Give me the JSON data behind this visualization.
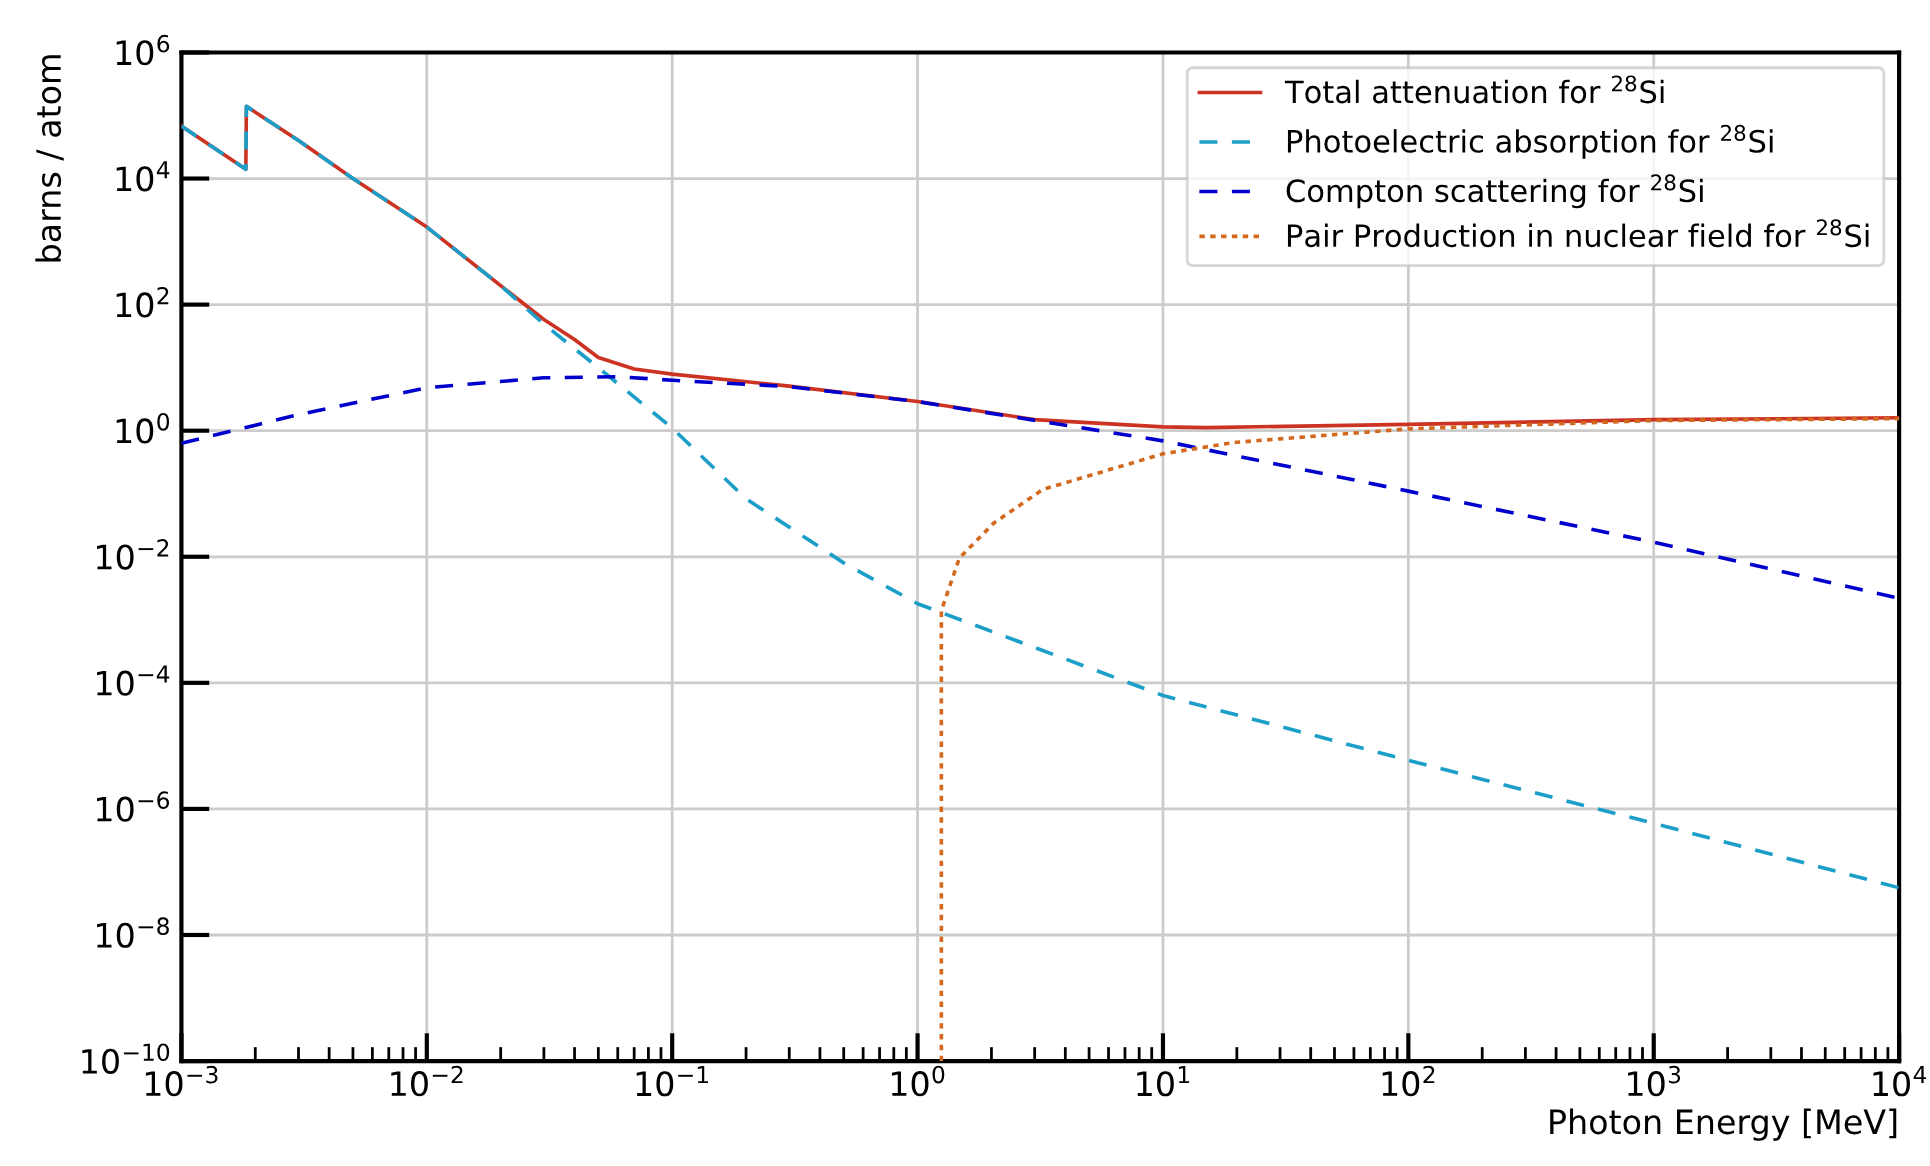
{
  "chart_data": {
    "type": "line",
    "xlabel": "Photon Energy [MeV]",
    "ylabel": "barns / atom",
    "log": "xy",
    "grid": true,
    "legend": "top right",
    "xlim": [
      0.001,
      10000
    ],
    "ylim": [
      1e-10,
      1000000
    ],
    "xticks": [
      {
        "value": 0.001,
        "label": "10$^{−3}$"
      },
      {
        "value": 0.01,
        "label": "10$^{−2}$"
      },
      {
        "value": 0.1,
        "label": "10$^{−1}$"
      },
      {
        "value": 1,
        "label": "10$^{0}$"
      },
      {
        "value": 10,
        "label": "10$^{1}$"
      },
      {
        "value": 100,
        "label": "10$^{2}$"
      },
      {
        "value": 1000,
        "label": "10$^{3}$"
      },
      {
        "value": 10000,
        "label": "10$^{4}$"
      }
    ],
    "yticks": [
      {
        "value": 1e-10,
        "label": "10$^{−10}$"
      },
      {
        "value": 1e-08,
        "label": "10$^{−8}$"
      },
      {
        "value": 1e-06,
        "label": "10$^{−6}$"
      },
      {
        "value": 0.0001,
        "label": "10$^{−4}$"
      },
      {
        "value": 0.01,
        "label": "10$^{−2}$"
      },
      {
        "value": 1,
        "label": "10$^{0}$"
      },
      {
        "value": 100,
        "label": "10$^{2}$"
      },
      {
        "value": 10000,
        "label": "10$^{4}$"
      },
      {
        "value": 1000000,
        "label": "10$^{6}$"
      }
    ],
    "series": [
      {
        "name": "Total attenuation for $^{28}$Si",
        "color": "#cc3322",
        "line_style": "solid",
        "x": [
          0.001,
          0.00183,
          0.00184,
          0.003,
          0.005,
          0.01,
          0.02,
          0.03,
          0.04,
          0.05,
          0.07,
          0.1,
          0.3,
          1,
          3,
          10,
          15,
          100,
          1000,
          10000
        ],
        "values": [
          68000,
          14000,
          140000,
          40000,
          10000,
          1700,
          200,
          58,
          28,
          14.5,
          9.5,
          7.9,
          5.1,
          2.9,
          1.5,
          1.15,
          1.12,
          1.26,
          1.5,
          1.6
        ]
      },
      {
        "name": "Photoelectric absorption for $^{28}$Si",
        "color": "#1b9fc8",
        "line_style": "dashed",
        "x": [
          0.001,
          0.00183,
          0.00184,
          0.003,
          0.005,
          0.01,
          0.02,
          0.03,
          0.05,
          0.1,
          0.2,
          0.5,
          1,
          10,
          100,
          1000,
          10000
        ],
        "values": [
          68000,
          14000,
          140000,
          40000,
          10000,
          1700,
          200,
          49,
          10,
          1.1,
          0.083,
          0.008,
          0.0018,
          6.3e-05,
          5.9e-06,
          5.9e-07,
          5.6e-08
        ]
      },
      {
        "name": "Compton scattering for $^{28}$Si",
        "color": "#0000cc",
        "line_style": "dashed",
        "x": [
          0.001,
          0.003,
          0.01,
          0.03,
          0.06,
          0.1,
          0.3,
          1,
          10,
          100,
          1000,
          10000
        ],
        "values": [
          0.63,
          1.8,
          4.8,
          6.9,
          7.2,
          6.3,
          5.0,
          2.9,
          0.69,
          0.11,
          0.017,
          0.0022
        ]
      },
      {
        "name": "Pair Production in nuclear field for $^{28}$Si",
        "color": "#d2691e",
        "line_style": "dotted",
        "x": [
          1.25,
          1.25,
          1.48,
          2.04,
          3.24,
          10,
          19.5,
          100,
          1000,
          10000
        ],
        "values": [
          1e-10,
          0.0014,
          0.0095,
          0.034,
          0.117,
          0.43,
          0.65,
          1.07,
          1.45,
          1.55
        ]
      }
    ]
  }
}
